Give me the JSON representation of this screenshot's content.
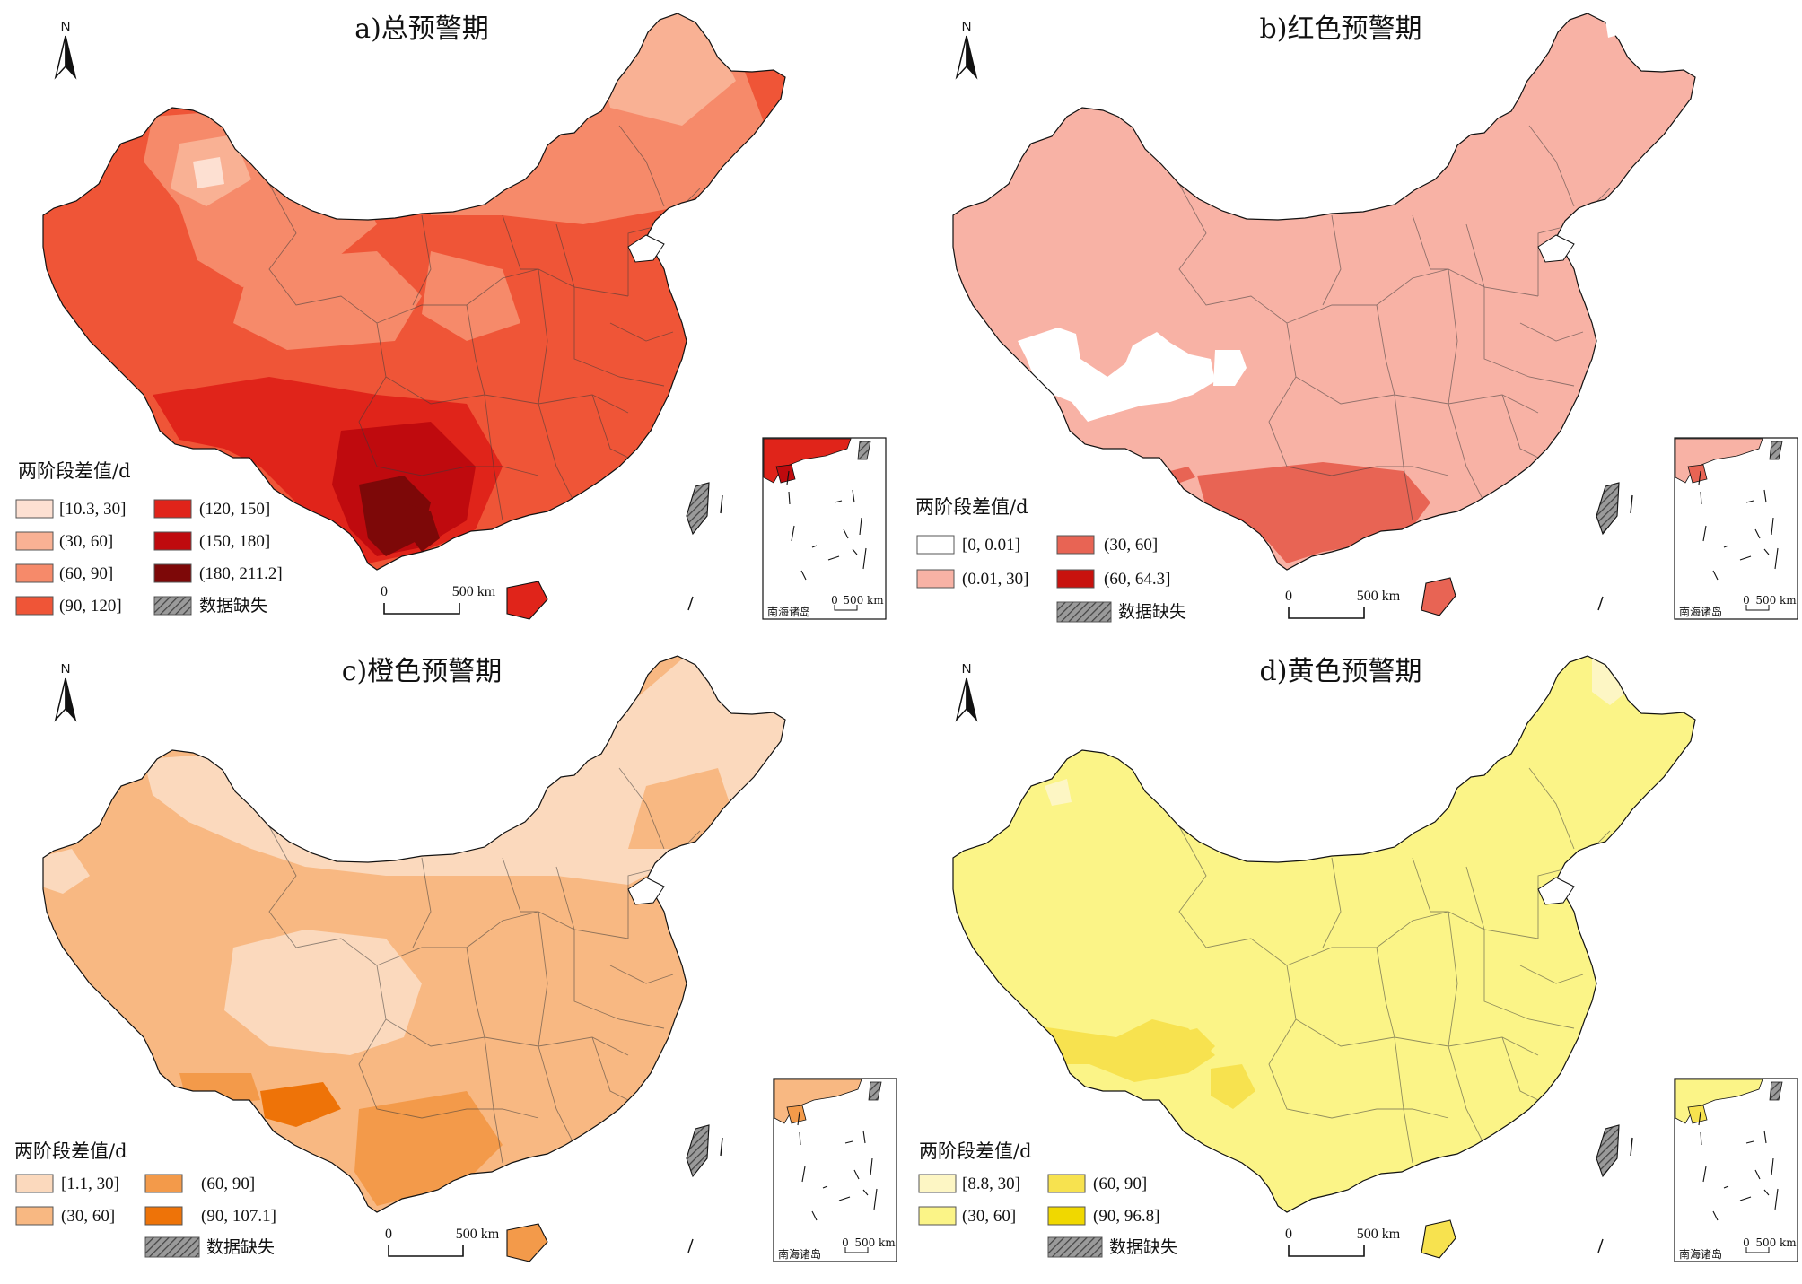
{
  "legend_title": "两阶段差值/d",
  "missing_label": "数据缺失",
  "scale": {
    "zero": "0",
    "distance": "500 km"
  },
  "inset_label": "南海诸岛",
  "north_label": "N",
  "panels": [
    {
      "title": "a)总预警期",
      "classes": [
        {
          "label": "[10.3, 30]",
          "color": "#fde0d2"
        },
        {
          "label": "(30, 60]",
          "color": "#f9b194"
        },
        {
          "label": "(60, 90]",
          "color": "#f68a6a"
        },
        {
          "label": "(90, 120]",
          "color": "#ef5537"
        },
        {
          "label": "(120, 150]",
          "color": "#e0241a"
        },
        {
          "label": "(150, 180]",
          "color": "#bf0a0e"
        },
        {
          "label": "(180, 211.2]",
          "color": "#7d0808"
        }
      ]
    },
    {
      "title": "b)红色预警期",
      "classes": [
        {
          "label": "[0, 0.01]",
          "color": "#ffffff"
        },
        {
          "label": "(0.01, 30]",
          "color": "#f8b2a5"
        },
        {
          "label": "(30, 60]",
          "color": "#e86454"
        },
        {
          "label": "(60, 64.3]",
          "color": "#c8120e"
        }
      ]
    },
    {
      "title": "c)橙色预警期",
      "classes": [
        {
          "label": "[1.1, 30]",
          "color": "#fbd9bd"
        },
        {
          "label": "(30, 60]",
          "color": "#f8b882"
        },
        {
          "label": "(60, 90]",
          "color": "#f39a4a"
        },
        {
          "label": "(90, 107.1]",
          "color": "#ee7308"
        }
      ]
    },
    {
      "title": "d)黄色预警期",
      "classes": [
        {
          "label": "[8.8, 30]",
          "color": "#fdf6c4"
        },
        {
          "label": "(30, 60]",
          "color": "#fbf487"
        },
        {
          "label": "(60, 90]",
          "color": "#f7e24f"
        },
        {
          "label": "(90, 96.8]",
          "color": "#f0d800"
        }
      ]
    }
  ]
}
